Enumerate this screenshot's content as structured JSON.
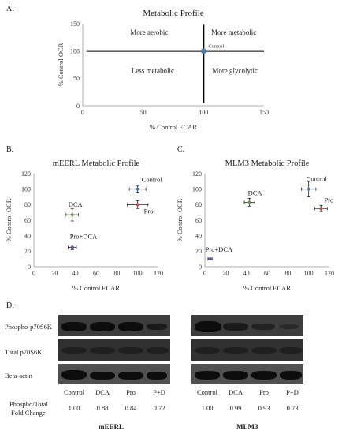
{
  "panels": {
    "a": "A.",
    "b": "B.",
    "c": "C.",
    "d": "D."
  },
  "chart_data": [
    {
      "type": "scatter",
      "title": "Metabolic Profile",
      "xlabel": "% Control ECAR",
      "ylabel": "% Control OCR",
      "xlim": [
        0,
        150
      ],
      "ylim": [
        0,
        150
      ],
      "xticks": [
        "0",
        "50",
        "100",
        "150"
      ],
      "yticks": [
        "0",
        "50",
        "100",
        "150"
      ],
      "quadrants": {
        "top_left": "More aerobic",
        "top_right": "More metabolic",
        "bottom_left": "Less metabolic",
        "bottom_right": "More glycolytic"
      },
      "crosshair": {
        "x": 100,
        "y": 100
      },
      "points": [
        {
          "label": "Control",
          "x": 100,
          "y": 100,
          "color": "#4a7fb8"
        }
      ],
      "grid": false
    },
    {
      "type": "scatter",
      "title": "mEERL Metabolic Profile",
      "xlabel": "% Control ECAR",
      "ylabel": "% Control OCR",
      "xlim": [
        0,
        120
      ],
      "ylim": [
        0,
        120
      ],
      "xticks": [
        "0",
        "20",
        "40",
        "60",
        "80",
        "100",
        "120"
      ],
      "yticks": [
        "0",
        "20",
        "40",
        "60",
        "80",
        "100",
        "120"
      ],
      "points": [
        {
          "label": "Control",
          "x": 100,
          "y": 100,
          "xerr": 8,
          "yerr": 4,
          "color": "#4a7fb8"
        },
        {
          "label": "Pro",
          "x": 100,
          "y": 80,
          "xerr": 10,
          "yerr": 5,
          "color": "#b84a4a"
        },
        {
          "label": "DCA",
          "x": 37,
          "y": 67,
          "xerr": 6,
          "yerr": 8,
          "color": "#6d9a3e"
        },
        {
          "label": "Pro+DCA",
          "x": 37,
          "y": 25,
          "xerr": 4,
          "yerr": 3,
          "color": "#6a4a9a"
        }
      ],
      "grid": false
    },
    {
      "type": "scatter",
      "title": "MLM3 Metabolic Profile",
      "xlabel": "% Control ECAR",
      "ylabel": "% Control OCR",
      "xlim": [
        0,
        120
      ],
      "ylim": [
        0,
        120
      ],
      "xticks": [
        "0",
        "20",
        "40",
        "60",
        "80",
        "100",
        "120"
      ],
      "yticks": [
        "0",
        "20",
        "40",
        "60",
        "80",
        "100",
        "120"
      ],
      "points": [
        {
          "label": "Control",
          "x": 100,
          "y": 100,
          "xerr": 7,
          "yerr": 10,
          "color": "#4a7fb8"
        },
        {
          "label": "Pro",
          "x": 112,
          "y": 75,
          "xerr": 6,
          "yerr": 4,
          "color": "#b84a4a"
        },
        {
          "label": "DCA",
          "x": 43,
          "y": 83,
          "xerr": 5,
          "yerr": 5,
          "color": "#6d9a3e"
        },
        {
          "label": "Pro+DCA",
          "x": 5,
          "y": 10,
          "xerr": 2,
          "yerr": 1,
          "color": "#6a4a9a"
        }
      ],
      "grid": false
    }
  ],
  "western_blot": {
    "rows": [
      "Phospho-p70S6K",
      "Total p70S6K",
      "Beta-actin"
    ],
    "lanes": [
      "Control",
      "DCA",
      "Pro",
      "P+D"
    ],
    "fold_change_label_line1": "Phospho/Total",
    "fold_change_label_line2": "Fold Change",
    "cell_lines": [
      {
        "name": "mEERL",
        "fold_change": [
          "1.00",
          "0.88",
          "0.84",
          "0.72"
        ]
      },
      {
        "name": "MLM3",
        "fold_change": [
          "1.00",
          "0.99",
          "0.93",
          "0.73"
        ]
      }
    ]
  }
}
